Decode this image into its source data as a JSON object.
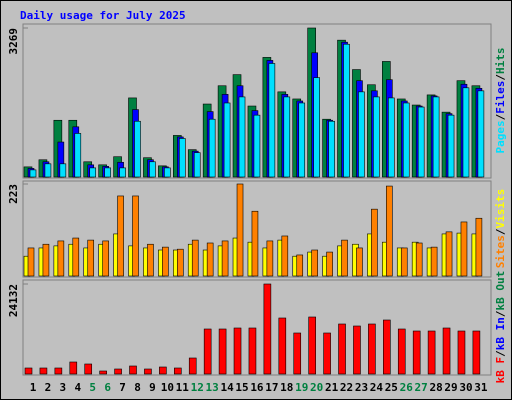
{
  "title": "Daily usage for July 2025",
  "separator": "/",
  "chart_data": [
    {
      "type": "bar",
      "ylim": [
        0,
        3269
      ],
      "yticks": [
        3269
      ],
      "series": [
        {
          "name": "Hits",
          "color": "#008040",
          "values": [
            222,
            378,
            1245,
            1245,
            334,
            267,
            445,
            1735,
            423,
            245,
            912,
            600,
            1601,
            2002,
            2246,
            1557,
            2624,
            1868,
            1712,
            3269,
            1268,
            3002,
            2357,
            2024,
            2535,
            1712,
            1579,
            1801,
            1423,
            2113,
            2002
          ]
        },
        {
          "name": "Files",
          "color": "#0000ff",
          "values": [
            189,
            334,
            767,
            1101,
            267,
            234,
            323,
            1479,
            379,
            223,
            879,
            567,
            1435,
            1813,
            2002,
            1457,
            2558,
            1813,
            1668,
            2725,
            1246,
            2958,
            2113,
            1891,
            2135,
            1668,
            1557,
            1779,
            1390,
            2035,
            1946
          ]
        },
        {
          "name": "Pages",
          "color": "#00e0ff",
          "values": [
            156,
            289,
            289,
            956,
            200,
            200,
            200,
            1223,
            334,
            200,
            845,
            534,
            1268,
            1624,
            1757,
            1357,
            2491,
            1757,
            1624,
            2180,
            1223,
            2913,
            1868,
            1757,
            1735,
            1624,
            1535,
            1757,
            1357,
            1957,
            1890
          ]
        }
      ]
    },
    {
      "type": "bar",
      "ylim": [
        0,
        223
      ],
      "yticks": [
        223
      ],
      "series": [
        {
          "name": "Visits",
          "color": "#ffff00",
          "values": [
            48,
            68,
            73,
            77,
            68,
            77,
            102,
            73,
            68,
            63,
            63,
            77,
            63,
            73,
            92,
            82,
            68,
            87,
            48,
            58,
            48,
            73,
            77,
            102,
            82,
            68,
            82,
            68,
            102,
            104,
            102
          ]
        },
        {
          "name": "Sites",
          "color": "#ff8000",
          "values": [
            68,
            77,
            85,
            92,
            87,
            85,
            194,
            194,
            77,
            70,
            65,
            87,
            80,
            85,
            223,
            157,
            85,
            97,
            51,
            63,
            58,
            87,
            68,
            162,
            218,
            68,
            80,
            70,
            107,
            131,
            140
          ]
        }
      ]
    },
    {
      "type": "bar",
      "ylim": [
        0,
        24132
      ],
      "yticks": [
        24132
      ],
      "categories": [
        "1",
        "2",
        "3",
        "4",
        "5",
        "6",
        "7",
        "8",
        "9",
        "10",
        "11",
        "12",
        "13",
        "14",
        "15",
        "16",
        "17",
        "18",
        "19",
        "20",
        "21",
        "22",
        "23",
        "24",
        "25",
        "26",
        "27",
        "28",
        "29",
        "30",
        "31"
      ],
      "category_colors": [
        "#000000",
        "#000000",
        "#000000",
        "#000000",
        "#008040",
        "#008040",
        "#000000",
        "#000000",
        "#000000",
        "#000000",
        "#000000",
        "#008040",
        "#008040",
        "#000000",
        "#000000",
        "#000000",
        "#000000",
        "#000000",
        "#008040",
        "#008040",
        "#000000",
        "#000000",
        "#000000",
        "#000000",
        "#000000",
        "#008040",
        "#008040",
        "#000000",
        "#000000",
        "#000000",
        "#000000"
      ],
      "series": [
        {
          "name": "kB Out",
          "color": "#008040"
        },
        {
          "name": "kB In",
          "color": "#0000ff"
        },
        {
          "name": "kB F",
          "color": "#ff0000",
          "values": [
            1609,
            1609,
            1609,
            3218,
            2681,
            804,
            1341,
            2145,
            1341,
            1877,
            1609,
            4290,
            12066,
            12066,
            12334,
            12334,
            24132,
            15015,
            10993,
            15283,
            10993,
            13406,
            12870,
            13406,
            14478,
            12066,
            11529,
            11529,
            12334,
            11529,
            11529
          ]
        }
      ]
    }
  ]
}
